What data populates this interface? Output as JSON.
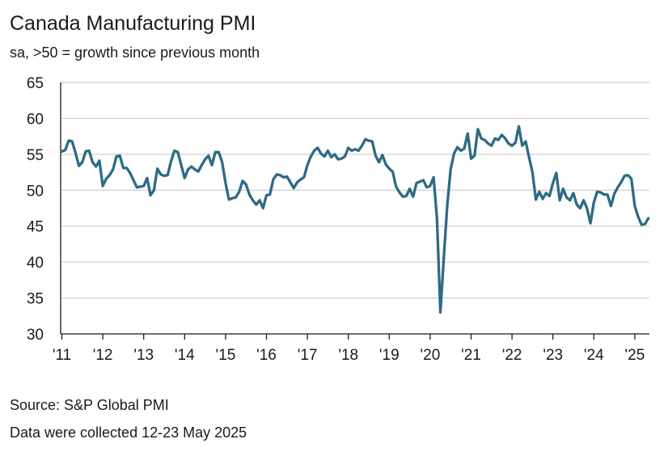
{
  "chart_data": {
    "type": "line",
    "title": "Canada Manufacturing PMI",
    "subtitle": "sa, >50 = growth since previous month",
    "ylim": [
      30,
      65
    ],
    "yticks": [
      30,
      35,
      40,
      45,
      50,
      55,
      60,
      65
    ],
    "xtick_labels": [
      "'11",
      "'12",
      "'13",
      "'14",
      "'15",
      "'16",
      "'17",
      "'18",
      "'19",
      "'20",
      "'21",
      "'22",
      "'23",
      "'24",
      "'25"
    ],
    "xlim": [
      "2011-01",
      "2025-05"
    ],
    "grid": "horizontal",
    "line_color": "#2e6a84",
    "series": [
      {
        "name": "",
        "x": [
          "2011-01",
          "2011-02",
          "2011-03",
          "2011-04",
          "2011-05",
          "2011-06",
          "2011-07",
          "2011-08",
          "2011-09",
          "2011-10",
          "2011-11",
          "2011-12",
          "2012-01",
          "2012-02",
          "2012-03",
          "2012-04",
          "2012-05",
          "2012-06",
          "2012-07",
          "2012-08",
          "2012-09",
          "2012-10",
          "2012-11",
          "2012-12",
          "2013-01",
          "2013-02",
          "2013-03",
          "2013-04",
          "2013-05",
          "2013-06",
          "2013-07",
          "2013-08",
          "2013-09",
          "2013-10",
          "2013-11",
          "2013-12",
          "2014-01",
          "2014-02",
          "2014-03",
          "2014-04",
          "2014-05",
          "2014-06",
          "2014-07",
          "2014-08",
          "2014-09",
          "2014-10",
          "2014-11",
          "2014-12",
          "2015-01",
          "2015-02",
          "2015-03",
          "2015-04",
          "2015-05",
          "2015-06",
          "2015-07",
          "2015-08",
          "2015-09",
          "2015-10",
          "2015-11",
          "2015-12",
          "2016-01",
          "2016-02",
          "2016-03",
          "2016-04",
          "2016-05",
          "2016-06",
          "2016-07",
          "2016-08",
          "2016-09",
          "2016-10",
          "2016-11",
          "2016-12",
          "2017-01",
          "2017-02",
          "2017-03",
          "2017-04",
          "2017-05",
          "2017-06",
          "2017-07",
          "2017-08",
          "2017-09",
          "2017-10",
          "2017-11",
          "2017-12",
          "2018-01",
          "2018-02",
          "2018-03",
          "2018-04",
          "2018-05",
          "2018-06",
          "2018-07",
          "2018-08",
          "2018-09",
          "2018-10",
          "2018-11",
          "2018-12",
          "2019-01",
          "2019-02",
          "2019-03",
          "2019-04",
          "2019-05",
          "2019-06",
          "2019-07",
          "2019-08",
          "2019-09",
          "2019-10",
          "2019-11",
          "2019-12",
          "2020-01",
          "2020-02",
          "2020-03",
          "2020-04",
          "2020-05",
          "2020-06",
          "2020-07",
          "2020-08",
          "2020-09",
          "2020-10",
          "2020-11",
          "2020-12",
          "2021-01",
          "2021-02",
          "2021-03",
          "2021-04",
          "2021-05",
          "2021-06",
          "2021-07",
          "2021-08",
          "2021-09",
          "2021-10",
          "2021-11",
          "2021-12",
          "2022-01",
          "2022-02",
          "2022-03",
          "2022-04",
          "2022-05",
          "2022-06",
          "2022-07",
          "2022-08",
          "2022-09",
          "2022-10",
          "2022-11",
          "2022-12",
          "2023-01",
          "2023-02",
          "2023-03",
          "2023-04",
          "2023-05",
          "2023-06",
          "2023-07",
          "2023-08",
          "2023-09",
          "2023-10",
          "2023-11",
          "2023-12",
          "2024-01",
          "2024-02",
          "2024-03",
          "2024-04",
          "2024-05",
          "2024-06",
          "2024-07",
          "2024-08",
          "2024-09",
          "2024-10",
          "2024-11",
          "2024-12",
          "2025-01",
          "2025-02",
          "2025-03",
          "2025-04",
          "2025-05"
        ],
        "values": [
          55.4,
          55.6,
          56.9,
          56.8,
          55.2,
          53.4,
          53.9,
          55.4,
          55.5,
          53.9,
          53.3,
          54.1,
          50.6,
          51.6,
          52.1,
          52.9,
          54.7,
          54.8,
          53.1,
          53.1,
          52.4,
          51.4,
          50.4,
          50.5,
          50.6,
          51.7,
          49.3,
          50.0,
          53.0,
          52.2,
          52.0,
          52.1,
          54.0,
          55.5,
          55.3,
          53.5,
          51.7,
          52.9,
          53.3,
          52.9,
          52.6,
          53.5,
          54.3,
          54.8,
          53.5,
          55.3,
          55.3,
          53.9,
          51.0,
          48.7,
          48.9,
          49.0,
          49.8,
          51.3,
          50.8,
          49.4,
          48.6,
          48.0,
          48.6,
          47.5,
          49.3,
          49.4,
          51.5,
          52.2,
          52.1,
          51.8,
          51.9,
          51.1,
          50.3,
          51.1,
          51.5,
          51.8,
          53.5,
          54.7,
          55.5,
          55.9,
          55.1,
          54.7,
          55.5,
          54.6,
          55.0,
          54.3,
          54.4,
          54.7,
          55.9,
          55.5,
          55.7,
          55.5,
          56.2,
          57.1,
          56.9,
          56.8,
          54.8,
          53.9,
          54.9,
          53.6,
          53.0,
          52.6,
          50.5,
          49.7,
          49.1,
          49.2,
          50.2,
          49.1,
          51.0,
          51.2,
          51.4,
          50.4,
          50.6,
          51.8,
          46.1,
          33.0,
          40.6,
          47.8,
          52.9,
          55.1,
          56.0,
          55.5,
          55.8,
          57.9,
          54.4,
          54.8,
          58.5,
          57.2,
          57.0,
          56.5,
          56.2,
          57.2,
          57.0,
          57.7,
          57.2,
          56.5,
          56.2,
          56.6,
          58.9,
          56.2,
          56.8,
          54.6,
          52.5,
          48.7,
          49.8,
          48.8,
          49.6,
          49.2,
          51.0,
          52.4,
          48.6,
          50.2,
          49.0,
          48.6,
          49.6,
          48.0,
          47.5,
          48.6,
          47.5,
          45.4,
          48.3,
          49.8,
          49.7,
          49.4,
          49.4,
          47.8,
          49.5,
          50.4,
          51.1,
          52.0,
          52.1,
          51.6,
          47.8,
          46.3,
          45.2,
          45.3,
          46.1
        ]
      }
    ]
  },
  "source": "Source: S&P Global PMI",
  "note": "Data were collected 12-23 May 2025"
}
